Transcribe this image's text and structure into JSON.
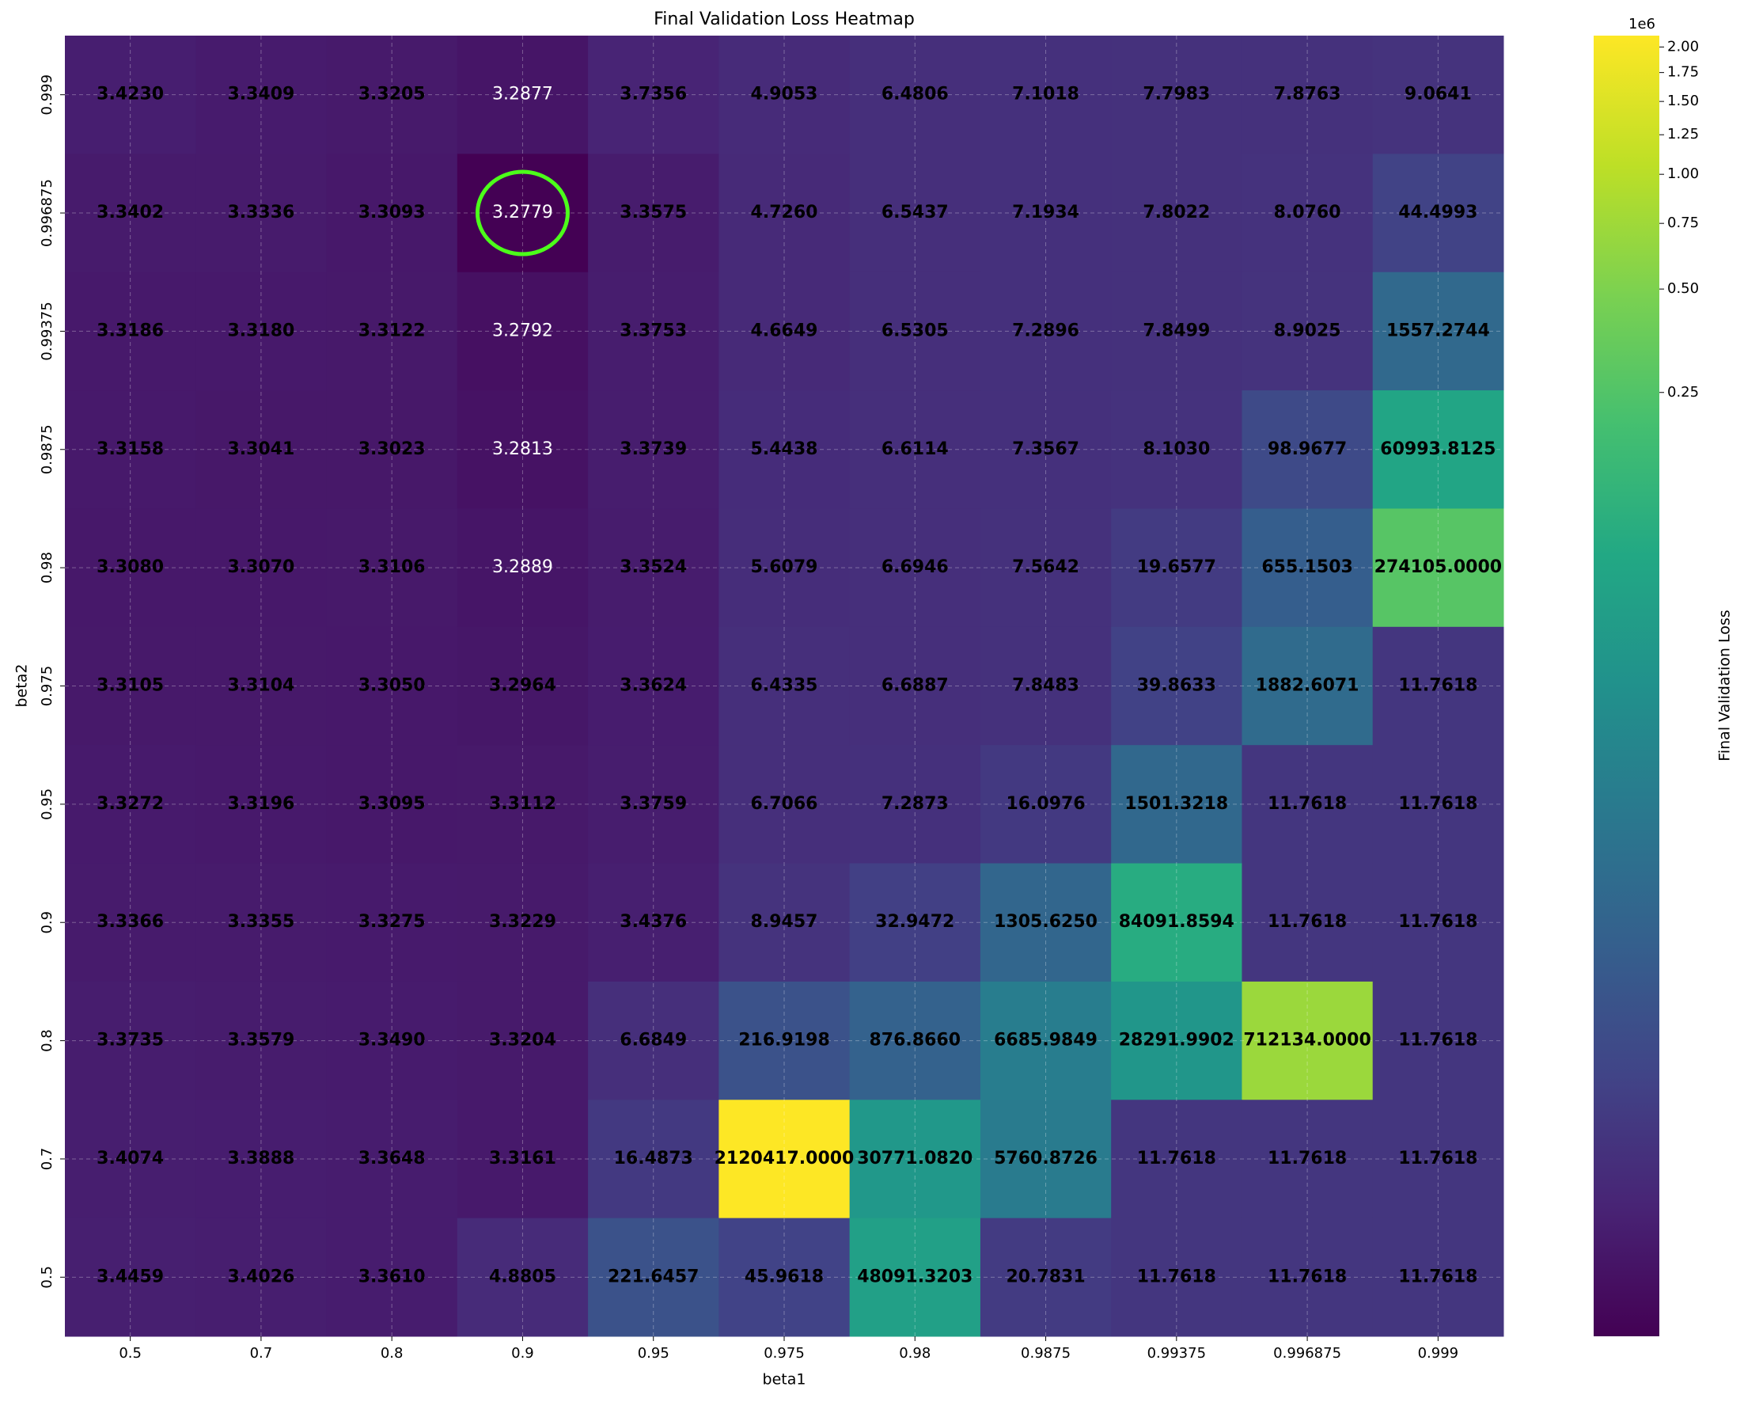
{
  "chart_data": {
    "type": "heatmap",
    "title": "Final Validation Loss Heatmap",
    "x_label": "beta1",
    "y_label": "beta2",
    "colorbar_label": "Final Validation Loss",
    "colorbar_offset": "1e6",
    "colormap": "viridis",
    "gamma": 0.15,
    "grid": true,
    "x": [
      "0.5",
      "0.7",
      "0.8",
      "0.9",
      "0.95",
      "0.975",
      "0.98",
      "0.9875",
      "0.99375",
      "0.996875",
      "0.999"
    ],
    "y": [
      "0.999",
      "0.996875",
      "0.99375",
      "0.9875",
      "0.98",
      "0.975",
      "0.95",
      "0.9",
      "0.8",
      "0.7",
      "0.5"
    ],
    "values": [
      [
        3.423,
        3.3409,
        3.3205,
        3.2877,
        3.7356,
        4.9053,
        6.4806,
        7.1018,
        7.7983,
        7.8763,
        9.0641
      ],
      [
        3.3402,
        3.3336,
        3.3093,
        3.2779,
        3.3575,
        4.726,
        6.5437,
        7.1934,
        7.8022,
        8.076,
        44.4993
      ],
      [
        3.3186,
        3.318,
        3.3122,
        3.2792,
        3.3753,
        4.6649,
        6.5305,
        7.2896,
        7.8499,
        8.9025,
        1557.2744
      ],
      [
        3.3158,
        3.3041,
        3.3023,
        3.2813,
        3.3739,
        5.4438,
        6.6114,
        7.3567,
        8.103,
        98.9677,
        60993.8125
      ],
      [
        3.308,
        3.307,
        3.3106,
        3.2889,
        3.3524,
        5.6079,
        6.6946,
        7.5642,
        19.6577,
        655.1503,
        274105.0
      ],
      [
        3.3105,
        3.3104,
        3.305,
        3.2964,
        3.3624,
        6.4335,
        6.6887,
        7.8483,
        39.8633,
        1882.6071,
        11.7618
      ],
      [
        3.3272,
        3.3196,
        3.3095,
        3.3112,
        3.3759,
        6.7066,
        7.2873,
        16.0976,
        1501.3218,
        11.7618,
        11.7618
      ],
      [
        3.3366,
        3.3355,
        3.3275,
        3.3229,
        3.4376,
        8.9457,
        32.9472,
        1305.625,
        84091.8594,
        11.7618,
        11.7618
      ],
      [
        3.3735,
        3.3579,
        3.349,
        3.3204,
        6.6849,
        216.9198,
        876.866,
        6685.9849,
        28291.9902,
        712134.0,
        11.7618
      ],
      [
        3.4074,
        3.3888,
        3.3648,
        3.3161,
        16.4873,
        2120417.0,
        30771.082,
        5760.8726,
        11.7618,
        11.7618,
        11.7618
      ],
      [
        3.4459,
        3.4026,
        3.361,
        4.8805,
        221.6457,
        45.9618,
        48091.3203,
        20.7831,
        11.7618,
        11.7618,
        11.7618
      ]
    ],
    "value_labels": [
      [
        "3.4230",
        "3.3409",
        "3.3205",
        "3.2877",
        "3.7356",
        "4.9053",
        "6.4806",
        "7.1018",
        "7.7983",
        "7.8763",
        "9.0641"
      ],
      [
        "3.3402",
        "3.3336",
        "3.3093",
        "3.2779",
        "3.3575",
        "4.7260",
        "6.5437",
        "7.1934",
        "7.8022",
        "8.0760",
        "44.4993"
      ],
      [
        "3.3186",
        "3.3180",
        "3.3122",
        "3.2792",
        "3.3753",
        "4.6649",
        "6.5305",
        "7.2896",
        "7.8499",
        "8.9025",
        "1557.2744"
      ],
      [
        "3.3158",
        "3.3041",
        "3.3023",
        "3.2813",
        "3.3739",
        "5.4438",
        "6.6114",
        "7.3567",
        "8.1030",
        "98.9677",
        "60993.8125"
      ],
      [
        "3.3080",
        "3.3070",
        "3.3106",
        "3.2889",
        "3.3524",
        "5.6079",
        "6.6946",
        "7.5642",
        "19.6577",
        "655.1503",
        "274105.0000"
      ],
      [
        "3.3105",
        "3.3104",
        "3.3050",
        "3.2964",
        "3.3624",
        "6.4335",
        "6.6887",
        "7.8483",
        "39.8633",
        "1882.6071",
        "11.7618"
      ],
      [
        "3.3272",
        "3.3196",
        "3.3095",
        "3.3112",
        "3.3759",
        "6.7066",
        "7.2873",
        "16.0976",
        "1501.3218",
        "11.7618",
        "11.7618"
      ],
      [
        "3.3366",
        "3.3355",
        "3.3275",
        "3.3229",
        "3.4376",
        "8.9457",
        "32.9472",
        "1305.6250",
        "84091.8594",
        "11.7618",
        "11.7618"
      ],
      [
        "3.3735",
        "3.3579",
        "3.3490",
        "3.3204",
        "6.6849",
        "216.9198",
        "876.8660",
        "6685.9849",
        "28291.9902",
        "712134.0000",
        "11.7618"
      ],
      [
        "3.4074",
        "3.3888",
        "3.3648",
        "3.3161",
        "16.4873",
        "2120417.0000",
        "30771.0820",
        "5760.8726",
        "11.7618",
        "11.7618",
        "11.7618"
      ],
      [
        "3.4459",
        "3.4026",
        "3.3610",
        "4.8805",
        "221.6457",
        "45.9618",
        "48091.3203",
        "20.7831",
        "11.7618",
        "11.7618",
        "11.7618"
      ]
    ],
    "zlim": [
      3.2779,
      2120417
    ],
    "zticks": [
      {
        "value": 250000,
        "label": "0.25"
      },
      {
        "value": 500000,
        "label": "0.50"
      },
      {
        "value": 750000,
        "label": "0.75"
      },
      {
        "value": 1000000,
        "label": "1.00"
      },
      {
        "value": 1250000,
        "label": "1.25"
      },
      {
        "value": 1500000,
        "label": "1.50"
      },
      {
        "value": 1750000,
        "label": "1.75"
      },
      {
        "value": 2000000,
        "label": "2.00"
      }
    ]
  }
}
